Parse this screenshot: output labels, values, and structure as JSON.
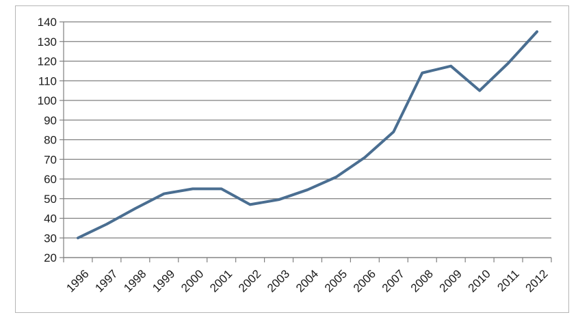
{
  "chart_data": {
    "type": "line",
    "title": "",
    "xlabel": "",
    "ylabel": "",
    "categories": [
      "1996",
      "1997",
      "1998",
      "1999",
      "2000",
      "2001",
      "2002",
      "2003",
      "2004",
      "2005",
      "2006",
      "2007",
      "2008",
      "2009",
      "2010",
      "2011",
      "2012"
    ],
    "series": [
      {
        "values": [
          30,
          37,
          45,
          52.5,
          55,
          55,
          47,
          49.5,
          54.5,
          61,
          71,
          84,
          114,
          117.5,
          105,
          119,
          135
        ]
      }
    ],
    "ylim": [
      20,
      140
    ],
    "yticks": [
      20,
      30,
      40,
      50,
      60,
      70,
      80,
      90,
      100,
      110,
      120,
      130,
      140
    ],
    "grid": "horizontal",
    "legend": "none",
    "colors": {
      "line": "#4a6e91",
      "grid": "#7f7f7f",
      "axis": "#7f7f7f"
    }
  }
}
